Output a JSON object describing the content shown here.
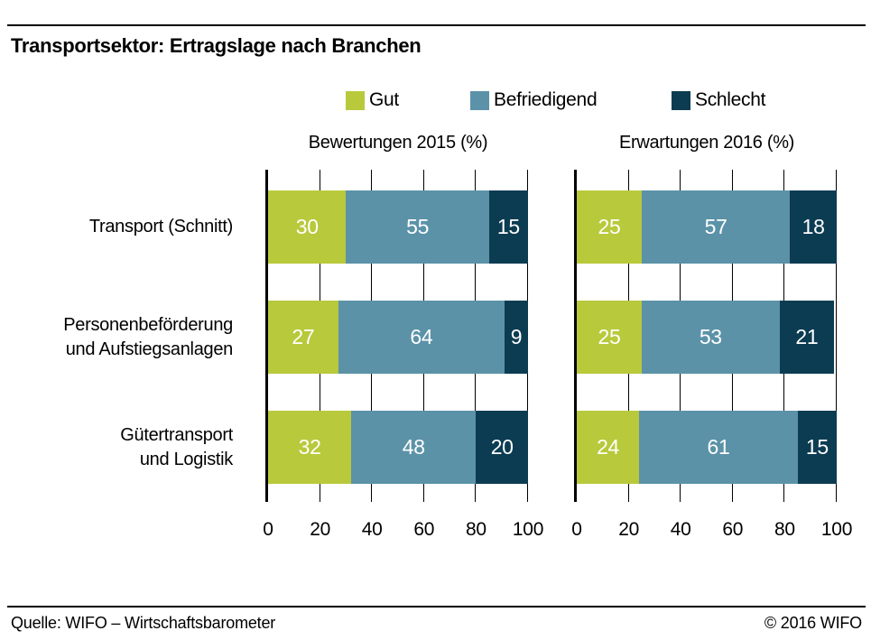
{
  "header": {
    "title": "Transportsektor: Ertragslage nach Branchen"
  },
  "legend": [
    {
      "label": "Gut",
      "color": "#b8c93b"
    },
    {
      "label": "Befriedigend",
      "color": "#5b92a8"
    },
    {
      "label": "Schlecht",
      "color": "#0c3c52"
    }
  ],
  "chart_data": {
    "type": "bar",
    "orientation": "horizontal",
    "stacked": true,
    "title": "Transportsektor: Ertragslage nach Branchen",
    "categories": [
      "Transport (Schnitt)",
      "Personenbeförderung\nund Aufstiegsanlagen",
      "Gütertransport\nund Logistik"
    ],
    "xticks": [
      0,
      20,
      40,
      60,
      80,
      100
    ],
    "xlim": [
      0,
      100
    ],
    "grid": true,
    "legend_position": "top",
    "colors": {
      "Gut": "#b8c93b",
      "Befriedigend": "#5b92a8",
      "Schlecht": "#0c3c52"
    },
    "panels": [
      {
        "title": "Bewertungen 2015 (%)",
        "series": [
          {
            "name": "Gut",
            "values": [
              30,
              27,
              32
            ]
          },
          {
            "name": "Befriedigend",
            "values": [
              55,
              64,
              48
            ]
          },
          {
            "name": "Schlecht",
            "values": [
              15,
              9,
              20
            ]
          }
        ]
      },
      {
        "title": "Erwartungen 2016 (%)",
        "series": [
          {
            "name": "Gut",
            "values": [
              25,
              25,
              24
            ]
          },
          {
            "name": "Befriedigend",
            "values": [
              57,
              53,
              61
            ]
          },
          {
            "name": "Schlecht",
            "values": [
              18,
              21,
              15
            ]
          }
        ]
      }
    ]
  },
  "footer": {
    "source": "Quelle: WIFO – Wirtschaftsbarometer",
    "copyright": "© 2016 WIFO"
  }
}
